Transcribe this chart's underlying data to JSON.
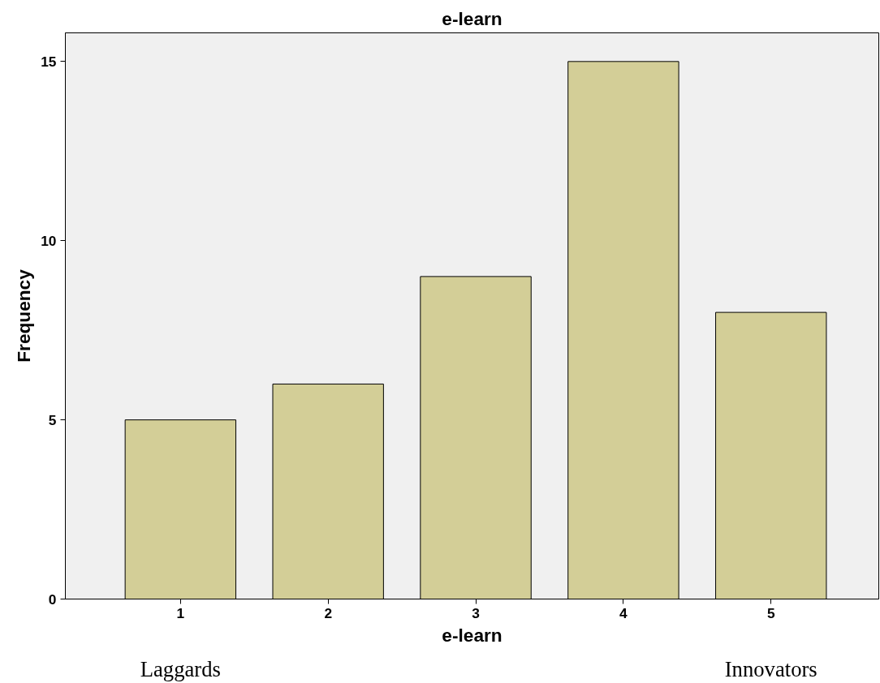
{
  "chart_data": {
    "type": "bar",
    "title": "e-learn",
    "xlabel": "e-learn",
    "ylabel": "Frequency",
    "categories": [
      "1",
      "2",
      "3",
      "4",
      "5"
    ],
    "values": [
      5,
      6,
      9,
      15,
      8
    ],
    "color": "#d3ce97",
    "ylim": [
      0,
      15.8
    ],
    "yticks": [
      0,
      5,
      10,
      15
    ],
    "grid": false,
    "annotations": [
      "Laggards",
      "Innovators"
    ]
  }
}
